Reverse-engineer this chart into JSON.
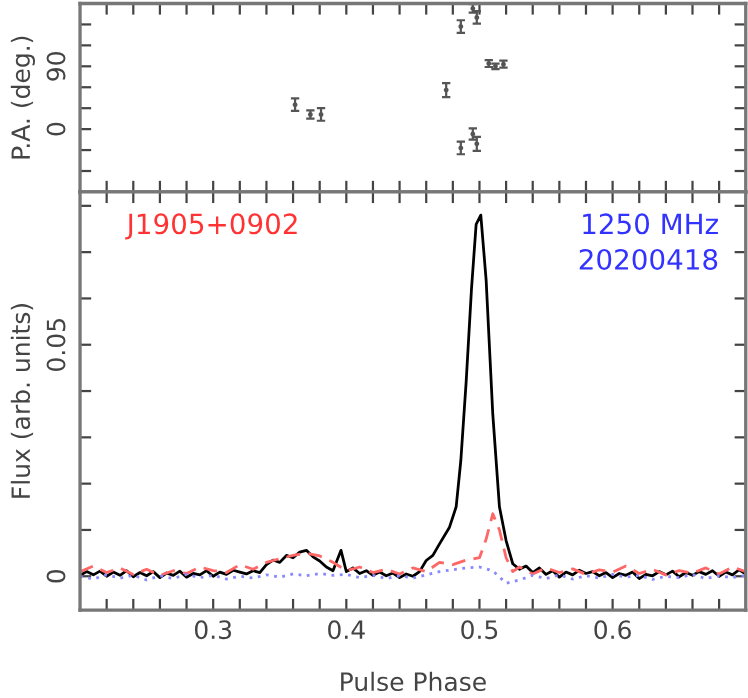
{
  "chart_data": [
    {
      "type": "scatter",
      "ylabel": "P.A. (deg.)",
      "marker": "circle",
      "tick_labels": "y",
      "grid": false,
      "series": [
        {
          "color": "#555555",
          "x": [
            0.3615,
            0.373,
            0.381,
            0.475,
            0.486,
            0.495,
            0.498,
            0.507,
            0.512,
            0.518,
            0.486,
            0.495,
            0.498
          ],
          "values": [
            35,
            21,
            21,
            56,
            147,
            173,
            160,
            94,
            90,
            93,
            -27,
            -7,
            -21
          ],
          "errors": [
            9,
            6,
            9,
            10,
            9,
            6,
            9,
            5,
            4,
            5,
            9,
            8,
            10
          ]
        }
      ],
      "xlim": [
        0.2,
        0.7
      ],
      "xticks": [
        {
          "value": 0.22,
          "label": null
        },
        {
          "value": 0.24,
          "label": null
        },
        {
          "value": 0.26,
          "label": null
        },
        {
          "value": 0.28,
          "label": null
        },
        {
          "value": 0.3,
          "label": null
        },
        {
          "value": 0.32,
          "label": null
        },
        {
          "value": 0.34,
          "label": null
        },
        {
          "value": 0.36,
          "label": null
        },
        {
          "value": 0.38,
          "label": null
        },
        {
          "value": 0.4,
          "label": null
        },
        {
          "value": 0.42,
          "label": null
        },
        {
          "value": 0.44,
          "label": null
        },
        {
          "value": 0.46,
          "label": null
        },
        {
          "value": 0.48,
          "label": null
        },
        {
          "value": 0.5,
          "label": null
        },
        {
          "value": 0.52,
          "label": null
        },
        {
          "value": 0.54,
          "label": null
        },
        {
          "value": 0.56,
          "label": null
        },
        {
          "value": 0.58,
          "label": null
        },
        {
          "value": 0.6,
          "label": null
        },
        {
          "value": 0.62,
          "label": null
        },
        {
          "value": 0.64,
          "label": null
        },
        {
          "value": 0.66,
          "label": null
        },
        {
          "value": 0.68,
          "label": null
        }
      ],
      "ylim": [
        -90,
        180
      ],
      "yticks": [
        {
          "value": -60,
          "label": null
        },
        {
          "value": -30,
          "label": null
        },
        0,
        {
          "value": 30,
          "label": null
        },
        {
          "value": 60,
          "label": null
        },
        90,
        {
          "value": 120,
          "label": null
        },
        {
          "value": 150,
          "label": null
        }
      ]
    },
    {
      "type": "line",
      "xlabel": "Pulse Phase",
      "ylabel": "Flux (arb. units)",
      "grid": false,
      "annotations": [
        "J1905+0902",
        "1250 MHz",
        "20200418"
      ],
      "series": [
        {
          "color": "#000000",
          "line_style": "solid",
          "x": [
            0.2,
            0.205,
            0.21,
            0.215,
            0.22,
            0.225,
            0.23,
            0.235,
            0.24,
            0.245,
            0.25,
            0.255,
            0.26,
            0.265,
            0.27,
            0.275,
            0.28,
            0.285,
            0.29,
            0.295,
            0.3,
            0.305,
            0.31,
            0.315,
            0.32,
            0.325,
            0.33,
            0.335,
            0.34,
            0.345,
            0.35,
            0.355,
            0.36,
            0.365,
            0.37,
            0.375,
            0.38,
            0.385,
            0.39,
            0.396,
            0.4,
            0.405,
            0.41,
            0.415,
            0.42,
            0.425,
            0.43,
            0.435,
            0.44,
            0.445,
            0.45,
            0.455,
            0.46,
            0.465,
            0.47,
            0.4775,
            0.4825,
            0.486,
            0.49,
            0.494,
            0.4975,
            0.501,
            0.505,
            0.51,
            0.515,
            0.52,
            0.525,
            0.53,
            0.535,
            0.54,
            0.545,
            0.55,
            0.555,
            0.56,
            0.565,
            0.57,
            0.575,
            0.58,
            0.585,
            0.59,
            0.595,
            0.6,
            0.605,
            0.61,
            0.615,
            0.62,
            0.625,
            0.63,
            0.635,
            0.64,
            0.645,
            0.65,
            0.655,
            0.66,
            0.665,
            0.67,
            0.675,
            0.68,
            0.685,
            0.69,
            0.695,
            0.7
          ],
          "values": [
            0.0002,
            0.001,
            0.0003,
            0.0011,
            0.0,
            0.0009,
            0.0002,
            0.0012,
            -0.0001,
            0.0008,
            0.0001,
            0.001,
            -0.0003,
            0.0007,
            0.0002,
            0.0011,
            -0.0002,
            0.0006,
            0.0003,
            0.0012,
            0.0,
            0.0009,
            0.0004,
            0.0013,
            0.0009,
            0.0005,
            0.0012,
            0.0008,
            0.0025,
            0.0035,
            0.003,
            0.0045,
            0.004,
            0.0052,
            0.0056,
            0.0042,
            0.0033,
            0.002,
            0.0012,
            0.0056,
            0.001,
            0.0018,
            0.0006,
            0.0012,
            0.0002,
            0.0009,
            0.0001,
            0.0007,
            -0.0003,
            0.0005,
            0.0,
            0.001,
            0.0034,
            0.0045,
            0.007,
            0.0106,
            0.015,
            0.025,
            0.042,
            0.062,
            0.076,
            0.078,
            0.064,
            0.035,
            0.015,
            0.0077,
            0.0027,
            0.0015,
            0.0022,
            0.0008,
            0.0018,
            0.0004,
            0.0012,
            -0.0002,
            0.0009,
            0.0003,
            0.0013,
            0.0006,
            0.001,
            0.0001,
            0.0008,
            -0.0003,
            0.0006,
            0.0002,
            0.0009,
            -0.0005,
            0.0004,
            0.0001,
            0.001,
            0.0003,
            0.0011,
            -0.0001,
            0.0008,
            0.0002,
            0.001,
            0.0004,
            0.0012,
            0.0,
            0.0009,
            0.0003,
            0.0014,
            0.0005
          ]
        },
        {
          "color": "#ff6666",
          "line_style": "dashed",
          "x": [
            0.2,
            0.21,
            0.22,
            0.23,
            0.24,
            0.25,
            0.26,
            0.27,
            0.28,
            0.29,
            0.3,
            0.31,
            0.32,
            0.33,
            0.34,
            0.35,
            0.36,
            0.37,
            0.38,
            0.39,
            0.4,
            0.41,
            0.42,
            0.43,
            0.44,
            0.45,
            0.46,
            0.47,
            0.48,
            0.49,
            0.5,
            0.505,
            0.51,
            0.515,
            0.52,
            0.525,
            0.53,
            0.54,
            0.55,
            0.56,
            0.57,
            0.58,
            0.59,
            0.6,
            0.61,
            0.62,
            0.63,
            0.64,
            0.65,
            0.66,
            0.67,
            0.68,
            0.69,
            0.7
          ],
          "values": [
            0.001,
            0.0022,
            0.0008,
            0.0018,
            0.0004,
            0.0015,
            0.0002,
            0.0012,
            0.0006,
            0.002,
            0.0012,
            0.0008,
            0.0025,
            0.0015,
            0.003,
            0.0038,
            0.0045,
            0.005,
            0.0044,
            0.003,
            0.0012,
            0.002,
            0.0008,
            0.0015,
            0.0005,
            0.0018,
            0.001,
            0.003,
            0.0025,
            0.0035,
            0.004,
            0.008,
            0.0135,
            0.01,
            0.004,
            0.001,
            0.002,
            0.0005,
            0.0018,
            0.0008,
            0.0016,
            0.0004,
            0.0014,
            0.0009,
            0.0022,
            0.0006,
            0.0015,
            0.0003,
            0.0012,
            0.0007,
            0.0018,
            0.0005,
            0.002,
            0.001
          ]
        },
        {
          "color": "#8888ff",
          "line_style": "dotted",
          "x": [
            0.2,
            0.21,
            0.22,
            0.23,
            0.24,
            0.25,
            0.26,
            0.27,
            0.28,
            0.29,
            0.3,
            0.31,
            0.32,
            0.33,
            0.34,
            0.35,
            0.36,
            0.37,
            0.38,
            0.39,
            0.4,
            0.41,
            0.42,
            0.43,
            0.44,
            0.45,
            0.46,
            0.47,
            0.48,
            0.49,
            0.5,
            0.51,
            0.52,
            0.53,
            0.54,
            0.55,
            0.56,
            0.57,
            0.58,
            0.59,
            0.6,
            0.61,
            0.62,
            0.63,
            0.64,
            0.65,
            0.66,
            0.67,
            0.68,
            0.69,
            0.7
          ],
          "values": [
            0.0,
            -0.0006,
            0.0003,
            -0.0004,
            0.0002,
            -0.0008,
            0.0001,
            -0.0005,
            0.0004,
            -0.0003,
            0.0002,
            -0.0006,
            0.0,
            -0.0004,
            0.0003,
            -0.0002,
            0.0005,
            0.0001,
            0.0006,
            0.0002,
            0.0004,
            -0.0003,
            0.0002,
            -0.0005,
            0.0001,
            -0.0004,
            0.0003,
            0.001,
            0.0014,
            0.0018,
            0.002,
            0.0012,
            -0.0015,
            -0.0008,
            0.0002,
            -0.0005,
            0.0003,
            -0.0006,
            0.0001,
            -0.0004,
            0.0004,
            -0.0002,
            0.0002,
            -0.0007,
            0.0,
            -0.0003,
            0.0004,
            -0.0005,
            0.0001,
            -0.0003,
            0.0002
          ]
        }
      ],
      "xlim": [
        0.2,
        0.7
      ],
      "xticks": [
        {
          "value": 0.22,
          "label": null
        },
        {
          "value": 0.24,
          "label": null
        },
        {
          "value": 0.26,
          "label": null
        },
        {
          "value": 0.28,
          "label": null
        },
        0.3,
        {
          "value": 0.32,
          "label": null
        },
        {
          "value": 0.34,
          "label": null
        },
        {
          "value": 0.36,
          "label": null
        },
        {
          "value": 0.38,
          "label": null
        },
        0.4,
        {
          "value": 0.42,
          "label": null
        },
        {
          "value": 0.44,
          "label": null
        },
        {
          "value": 0.46,
          "label": null
        },
        {
          "value": 0.48,
          "label": null
        },
        0.5,
        {
          "value": 0.52,
          "label": null
        },
        {
          "value": 0.54,
          "label": null
        },
        {
          "value": 0.56,
          "label": null
        },
        {
          "value": 0.58,
          "label": null
        },
        0.6,
        {
          "value": 0.62,
          "label": null
        },
        {
          "value": 0.64,
          "label": null
        },
        {
          "value": 0.66,
          "label": null
        },
        {
          "value": 0.68,
          "label": null
        }
      ],
      "ylim": [
        -0.0073,
        0.083
      ],
      "yticks": [
        0,
        {
          "value": 0.01,
          "label": null
        },
        {
          "value": 0.02,
          "label": null
        },
        {
          "value": 0.03,
          "label": null
        },
        {
          "value": 0.04,
          "label": null
        },
        0.05,
        {
          "value": 0.06,
          "label": null
        },
        {
          "value": 0.07,
          "label": null
        },
        {
          "value": 0.08,
          "label": null
        }
      ]
    }
  ]
}
